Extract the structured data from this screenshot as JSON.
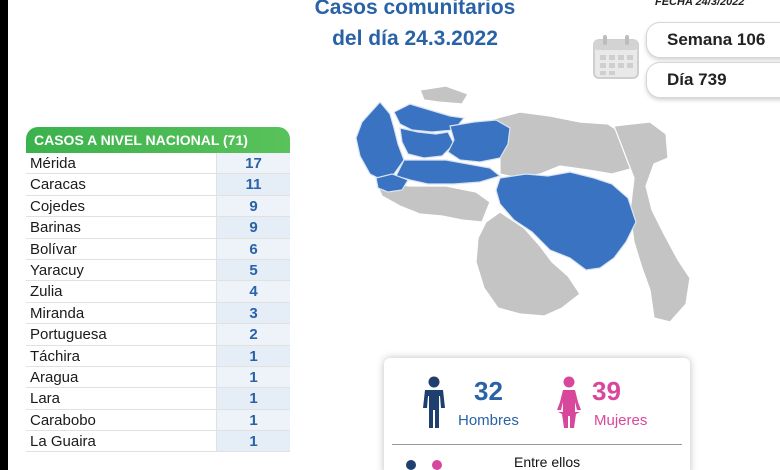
{
  "header": {
    "title_line1": "Casos comunitarios",
    "title_line2": "del día 24.3.2022",
    "fecha": "FECHA 24/3/2022"
  },
  "calendar": {
    "icon": "calendar-icon",
    "semana": "Semana 106",
    "dia": "Día 739"
  },
  "table": {
    "header": "CASOS A NIVEL NACIONAL  (71)",
    "rows": [
      {
        "state": "Mérida",
        "cases": "17"
      },
      {
        "state": "Caracas",
        "cases": "11"
      },
      {
        "state": "Cojedes",
        "cases": "9"
      },
      {
        "state": "Barinas",
        "cases": "9"
      },
      {
        "state": "Bolívar",
        "cases": "6"
      },
      {
        "state": "Yaracuy",
        "cases": "5"
      },
      {
        "state": "Zulia",
        "cases": "4"
      },
      {
        "state": "Miranda",
        "cases": "3"
      },
      {
        "state": "Portuguesa",
        "cases": "2"
      },
      {
        "state": "Táchira",
        "cases": "1"
      },
      {
        "state": "Aragua",
        "cases": "1"
      },
      {
        "state": "Lara",
        "cases": "1"
      },
      {
        "state": "Carabobo",
        "cases": "1"
      },
      {
        "state": "La Guaira",
        "cases": "1"
      }
    ]
  },
  "stats": {
    "hombres_count": "32",
    "hombres_label": "Hombres",
    "mujeres_count": "39",
    "mujeres_label": "Mujeres",
    "entre_ellos": "Entre ellos"
  },
  "colors": {
    "blue": "#2a62a8",
    "green": "#3bb24d",
    "pink": "#d8479b",
    "map_highlight": "#3a73c2",
    "map_gray": "#c4c4c4"
  }
}
